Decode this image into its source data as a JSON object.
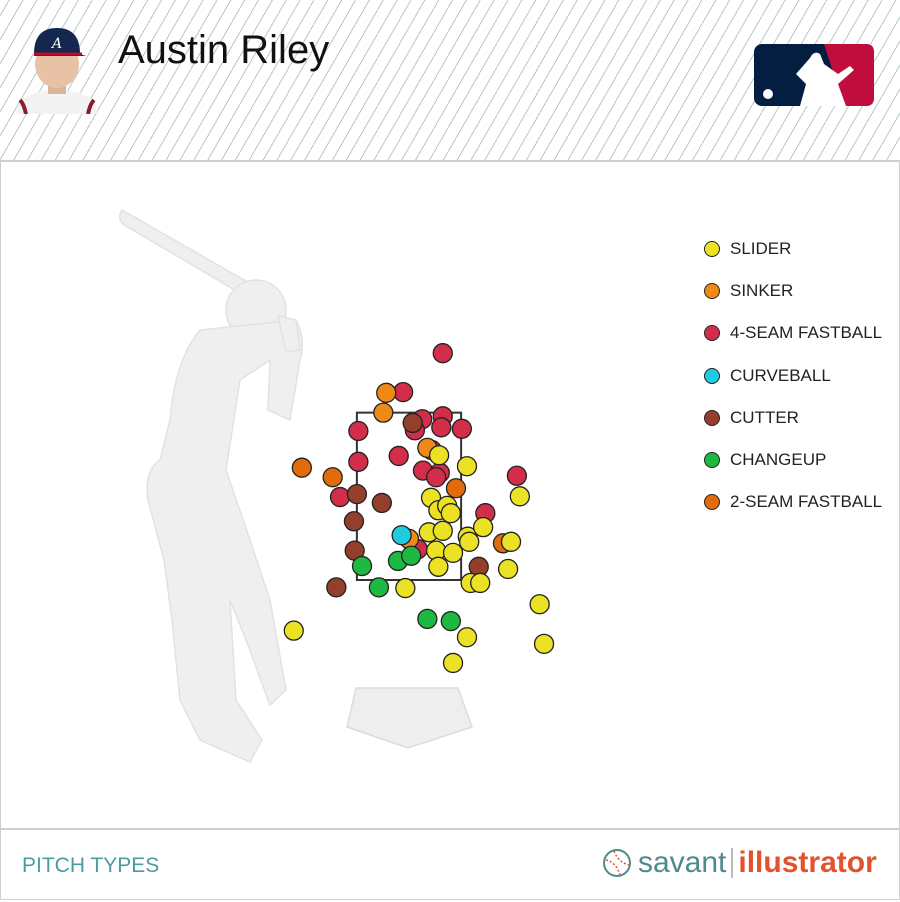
{
  "header": {
    "player_name": "Austin Riley",
    "logo": "MLB"
  },
  "footer": {
    "label": "PITCH TYPES",
    "brand_left": "savant",
    "brand_right": "illustrator"
  },
  "chart_data": {
    "type": "scatter",
    "title": "",
    "units": "feet",
    "strike_zone": {
      "x": [
        -0.71,
        0.71
      ],
      "z": [
        1.5,
        3.78
      ]
    },
    "legend_position": "right",
    "legend": [
      {
        "name": "SLIDER",
        "color": "#ebe226"
      },
      {
        "name": "SINKER",
        "color": "#f08a16"
      },
      {
        "name": "4-SEAM FASTBALL",
        "color": "#d22d49"
      },
      {
        "name": "CURVEBALL",
        "color": "#1ecbe1"
      },
      {
        "name": "CUTTER",
        "color": "#933f2c"
      },
      {
        "name": "CHANGEUP",
        "color": "#1db940"
      },
      {
        "name": "2-SEAM FASTBALL",
        "color": "#e26b0c"
      }
    ],
    "series": [
      {
        "name": "4-SEAM FASTBALL",
        "points": [
          [
            0.46,
            4.59
          ],
          [
            -0.08,
            4.06
          ],
          [
            0.18,
            3.69
          ],
          [
            0.46,
            3.73
          ],
          [
            0.08,
            3.54
          ],
          [
            0.44,
            3.58
          ],
          [
            0.72,
            3.56
          ],
          [
            -0.69,
            3.53
          ],
          [
            0.31,
            3.27
          ],
          [
            -0.69,
            3.11
          ],
          [
            -0.14,
            3.19
          ],
          [
            0.19,
            2.99
          ],
          [
            0.42,
            2.96
          ],
          [
            0.37,
            2.9
          ],
          [
            1.47,
            2.92
          ],
          [
            -0.94,
            2.63
          ],
          [
            1.04,
            2.41
          ],
          [
            0.12,
            1.92
          ]
        ]
      },
      {
        "name": "SINKER",
        "points": [
          [
            -0.31,
            4.05
          ],
          [
            -0.35,
            3.78
          ],
          [
            0.25,
            3.3
          ],
          [
            0.0,
            2.06
          ]
        ]
      },
      {
        "name": "2-SEAM FASTBALL",
        "points": [
          [
            -1.46,
            3.03
          ],
          [
            -1.04,
            2.9
          ],
          [
            0.64,
            2.75
          ],
          [
            1.28,
            2.0
          ]
        ]
      },
      {
        "name": "CUTTER",
        "points": [
          [
            0.05,
            3.64
          ],
          [
            -0.71,
            2.67
          ],
          [
            -0.37,
            2.55
          ],
          [
            -0.75,
            2.3
          ],
          [
            -0.74,
            1.9
          ],
          [
            -0.99,
            1.4
          ],
          [
            0.95,
            1.68
          ]
        ]
      },
      {
        "name": "CURVEBALL",
        "points": [
          [
            -0.1,
            2.11
          ]
        ]
      },
      {
        "name": "CHANGEUP",
        "points": [
          [
            -0.64,
            1.69
          ],
          [
            -0.15,
            1.76
          ],
          [
            0.03,
            1.83
          ],
          [
            -0.41,
            1.4
          ],
          [
            0.25,
            0.97
          ],
          [
            0.57,
            0.94
          ]
        ]
      },
      {
        "name": "SLIDER",
        "points": [
          [
            0.41,
            3.2
          ],
          [
            0.79,
            3.05
          ],
          [
            1.51,
            2.64
          ],
          [
            0.3,
            2.62
          ],
          [
            0.4,
            2.45
          ],
          [
            0.52,
            2.51
          ],
          [
            0.57,
            2.41
          ],
          [
            0.27,
            2.15
          ],
          [
            0.46,
            2.17
          ],
          [
            0.8,
            2.09
          ],
          [
            1.01,
            2.22
          ],
          [
            0.82,
            2.02
          ],
          [
            1.39,
            2.02
          ],
          [
            0.37,
            1.9
          ],
          [
            0.6,
            1.87
          ],
          [
            0.4,
            1.68
          ],
          [
            1.35,
            1.65
          ],
          [
            0.84,
            1.46
          ],
          [
            0.97,
            1.46
          ],
          [
            -0.05,
            1.39
          ],
          [
            1.78,
            1.17
          ],
          [
            -1.57,
            0.81
          ],
          [
            0.79,
            0.72
          ],
          [
            1.84,
            0.63
          ],
          [
            0.6,
            0.37
          ]
        ]
      }
    ]
  }
}
